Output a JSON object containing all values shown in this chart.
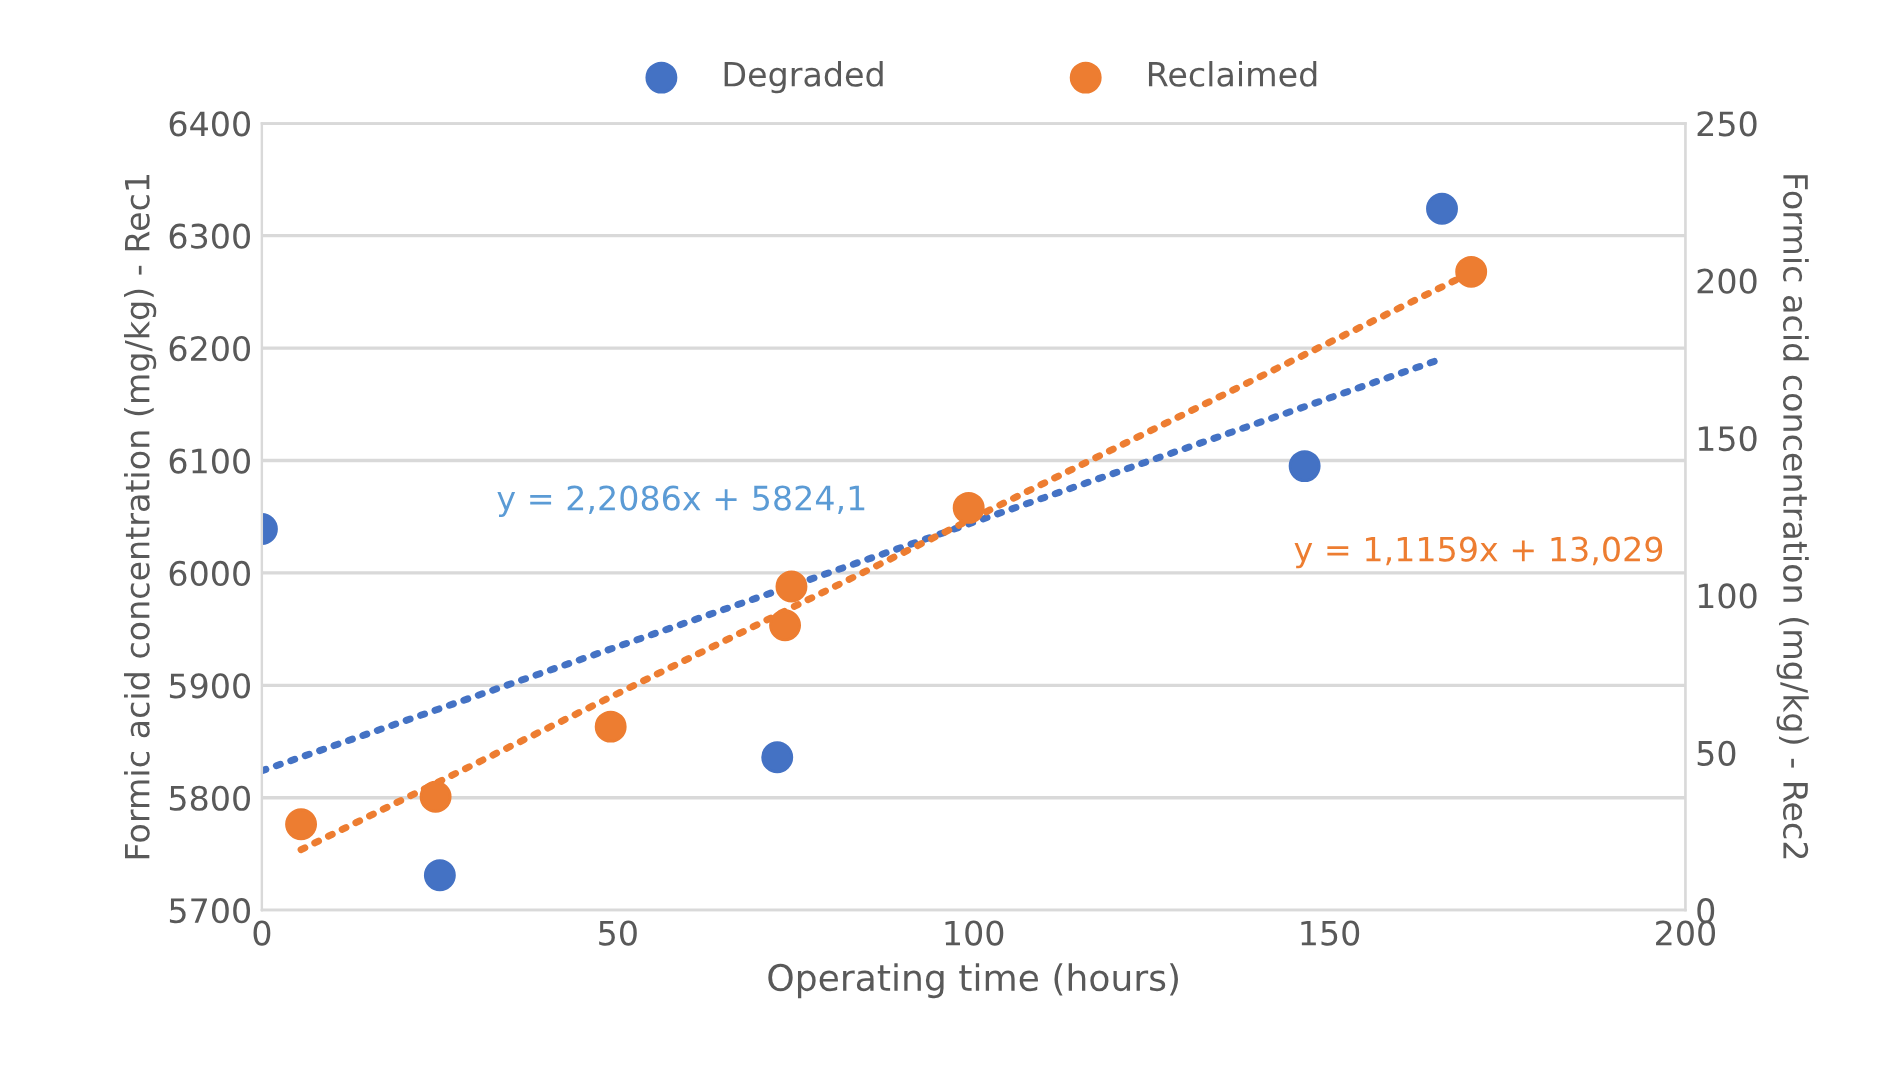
{
  "chart_data": {
    "type": "scatter",
    "xlabel": "Operating time (hours)",
    "ylabel": "Formic acid concentration (mg/kg) - Rec1",
    "y2label": "Formic acid concentration (mg/kg) - Rec2",
    "series": [
      {
        "name": "Degraded",
        "color": "#4472c4",
        "x": [
          0,
          25,
          72.4,
          146.5,
          165.8
        ],
        "values": [
          6039,
          5731,
          5836,
          6095,
          6324
        ]
      },
      {
        "name": "Reclaimed",
        "color": "#ed7d31",
        "axis": "y2",
        "x": [
          5.5,
          24.4,
          49,
          73.5,
          74.4,
          99.3,
          169.9
        ],
        "values": [
          27.3,
          36,
          58.3,
          90.5,
          102.8,
          127.8,
          202.8
        ]
      },
      {
        "type": "line",
        "color": "#4472c4",
        "line_style": "dotted",
        "marker": "none",
        "x": [
          0,
          166
        ],
        "values": [
          5824,
          6191
        ]
      },
      {
        "type": "line",
        "color": "#ed7d31",
        "line_style": "dotted",
        "marker": "none",
        "axis": "y2",
        "x": [
          5.5,
          170
        ],
        "values": [
          19.2,
          202.7
        ]
      }
    ],
    "annotations": [
      "y = 2,2086x + 5824,1",
      "y = 1,1159x + 13,029"
    ],
    "marker": "circle",
    "xlim": [
      0,
      200
    ],
    "xticks": [
      0,
      50,
      100,
      150,
      200
    ],
    "ylim": [
      5700,
      6400
    ],
    "yticks": [
      5700,
      5800,
      5900,
      6000,
      6100,
      6200,
      6300,
      6400
    ],
    "y2lim": [
      0,
      250
    ],
    "y2ticks": [
      0,
      50,
      100,
      150,
      200,
      250
    ],
    "grid": "y",
    "legend": "top"
  }
}
